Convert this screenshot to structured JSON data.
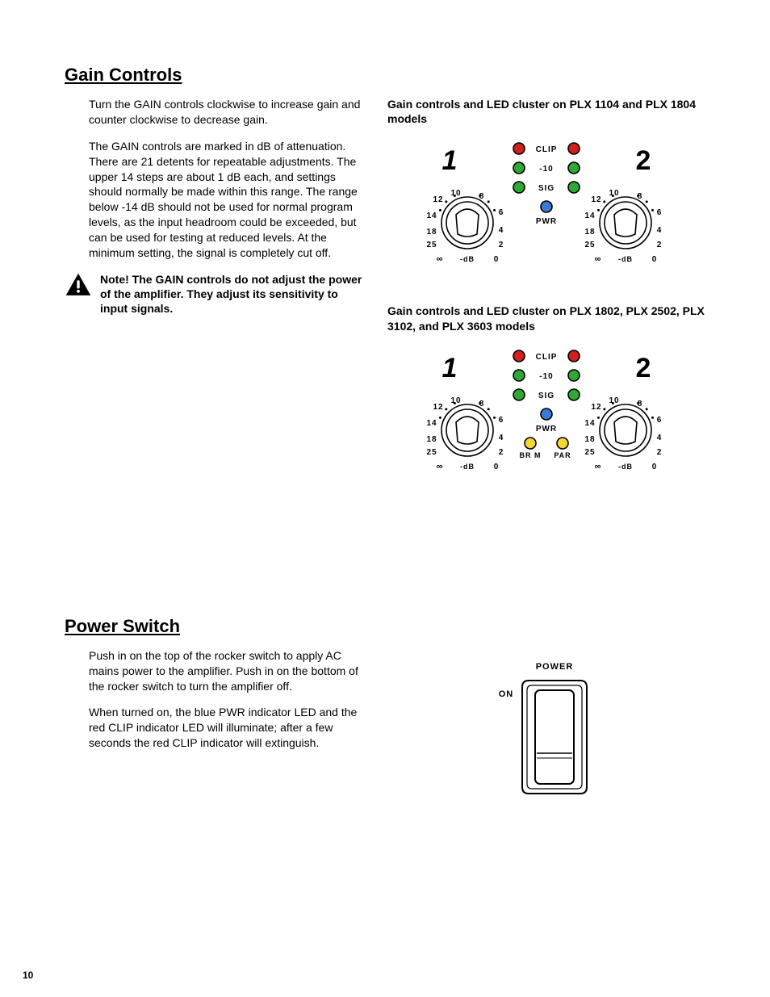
{
  "page_number": "10",
  "sections": {
    "gain": {
      "heading": "Gain Controls",
      "para1": "Turn the GAIN controls clockwise to increase gain and counter clockwise to decrease gain.",
      "para2": "The GAIN controls are marked in dB of attenuation. There are 21 detents for repeatable adjustments. The upper 14 steps are about 1 dB each, and settings should normally be made within this range. The range below -14 dB should not be used for normal program levels, as the input headroom could be exceeded, but can be used for testing at reduced levels. At the minimum setting, the signal is completely cut off.",
      "note": "Note! The GAIN controls do not adjust the power of the amplifier. They adjust its sensitivity to input signals.",
      "caption1": "Gain controls and LED cluster on PLX 1104 and PLX 1804 models",
      "caption2": "Gain controls and LED cluster on PLX 1802, PLX 2502, PLX 3102, and PLX 3603 models"
    },
    "power": {
      "heading": "Power Switch",
      "para1": "Push in on the top of the rocker switch to apply AC mains power to the amplifier. Push in on the bottom of the rocker switch to turn the amplifier off.",
      "para2": "When turned on, the blue PWR indicator LED and the red CLIP indicator LED will illuminate; after a few seconds the red CLIP indicator will extinguish."
    }
  },
  "diagram": {
    "led_labels": {
      "clip": "CLIP",
      "neg10": "-10",
      "sig": "SIG",
      "pwr": "PWR",
      "brm": "BR M",
      "par": "PAR"
    },
    "channel_labels": {
      "one": "1",
      "two": "2"
    },
    "dial_scale": {
      "top_left": "12",
      "top_mid": "10",
      "top_right": "8",
      "right_upper": "6",
      "right_mid": "4",
      "right_lower": "2",
      "right_bottom": "0",
      "left_upper": "14",
      "left_mid": "18",
      "left_lower": "25",
      "bottom_left": "∞",
      "bottom_label": "-dB"
    },
    "colors": {
      "red": "#d21f1f",
      "green": "#2fa836",
      "blue": "#3a7bd5",
      "yellow": "#f4d735",
      "black": "#000000",
      "white": "#ffffff"
    },
    "stroke_width": 1.6
  },
  "power_diagram": {
    "label_power": "POWER",
    "label_on": "ON"
  }
}
